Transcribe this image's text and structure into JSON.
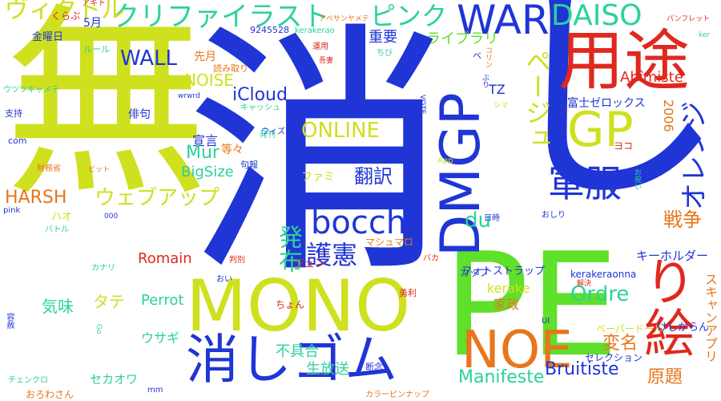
{
  "colors": {
    "yellow": "#cfe01e",
    "blue": "#1f35d6",
    "green": "#5fe02a",
    "red": "#e0281e",
    "orange": "#e8761b",
    "teal": "#2bd29a",
    "lime": "#a7e11d",
    "cyan": "#26bfe0"
  },
  "words": {
    "w001": "消",
    "w002": "無",
    "w003": "し",
    "w004": "PE",
    "w005": "MONO",
    "w006": "用途",
    "w007": "消しゴム",
    "w008": "NOE",
    "w009": "DMGP",
    "w010": "GP",
    "w011": "WAR",
    "w012": "り絵",
    "w013": "クリファイラスト",
    "w014": "軍服",
    "w015": "bocchi",
    "w016": "ヴィクトル",
    "w017": "DAISO",
    "w018": "ピンク",
    "w019": "オレンジ",
    "w020": "ページュ",
    "w021": "ONLINE",
    "w022": "ウェブアップ",
    "w023": "WALL",
    "w024": "Ordre",
    "w025": "Bruitiste",
    "w026": "Manifeste",
    "w027": "HARSH",
    "w028": "NOISE",
    "w029": "護憲",
    "w030": "発布",
    "w031": "戦争",
    "w032": "翻訳",
    "w033": "変名",
    "w034": "原題",
    "w035": "重要",
    "w036": "宣言",
    "w037": "不具合",
    "w038": "生放送",
    "w039": "気味",
    "w040": "タテ",
    "w041": "iCloud",
    "w042": "Mur",
    "w043": "BigSize",
    "w044": "du",
    "w045": "Romain",
    "w046": "Perrot",
    "w047": "ライブラリ",
    "w048": "Abîmiste",
    "w049": "キーホルダー",
    "w050": "富士ゼロックス",
    "w051": "家政",
    "w052": "kerake",
    "w053": "フォトストラップ",
    "w054": "2006",
    "w055": "TZ",
    "w056": "スキャンアプリ",
    "w057": "ウサギ",
    "w058": "セカオワ",
    "w059": "俳句",
    "w060": "等々",
    "w061": "先月",
    "w062": "5月",
    "w063": "金曜日",
    "w064": "ファミ",
    "w065": "ハオ",
    "w066": "ジュン",
    "w067": "マシュマロ",
    "w068": "ヨコ",
    "w069": "ペーパードール",
    "w070": "カップ",
    "w071": "セレクション",
    "w072": "けしからん",
    "w073": "kerakeraonna",
    "w074": "9245528",
    "w075": "kerakerao",
    "w076": "アキト",
    "w077": "くらぶ",
    "w078": "ルール",
    "w079": "ウツツキャメテ",
    "w080": "支持",
    "w081": "com",
    "w082": "財務省",
    "w083": "pink",
    "w084": "バトル",
    "w085": "カナリ",
    "w086": "容赦",
    "w087": "チェンクロ",
    "w088": "おろわさん",
    "w089": "mm",
    "w090": "カラーピンナップ",
    "w091": "断念",
    "w092": "ちょん",
    "w093": "勇利",
    "w094": "おい",
    "w095": "判別",
    "w096": "バカ",
    "w097": "解決",
    "w098": "UI",
    "w099": "日時",
    "w100": "おしり",
    "w101": "App",
    "w102": "ビット",
    "w103": "句報",
    "w104": "発刊",
    "w105": "キャッシュ",
    "w106": "wrwrd",
    "w107": "VOTE",
    "w108": "吾妻",
    "w109": "運用",
    "w110": "ウィズ",
    "w111": "読み取り",
    "w112": "ちび",
    "w113": "アベサンヤメテ",
    "w114": "パンフレット",
    "w115": "ker",
    "w116": "ぶり",
    "w117": "コリン",
    "w118": "ベ",
    "w119": "000",
    "w120": "Go",
    "w121": "お祝い",
    "w122": "シマ"
  }
}
